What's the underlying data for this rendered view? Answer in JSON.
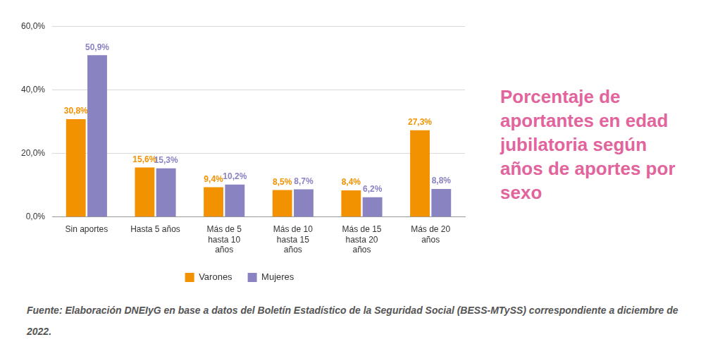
{
  "chart_data": {
    "type": "bar",
    "title": "Porcentaje de aportantes en edad jubilatoria según años de aportes por sexo",
    "source": "Fuente: Elaboración DNEIyG en base a datos del Boletín Estadístico de la Seguridad Social (BESS-MTySS) correspondiente a diciembre de 2022.",
    "categories": [
      "Sin aportes",
      "Hasta 5 años",
      "Más de 5 hasta 10 años",
      "Más de 10 hasta 15 años",
      "Más de 15 hasta 20 años",
      "Más de 20 años"
    ],
    "series": [
      {
        "name": "Varones",
        "color": "#f39200",
        "values": [
          30.8,
          15.6,
          9.4,
          8.5,
          8.4,
          27.3
        ],
        "value_labels": [
          "30,8%",
          "15,6%",
          "9,4%",
          "8,5%",
          "8,4%",
          "27,3%"
        ]
      },
      {
        "name": "Mujeres",
        "color": "#8983c2",
        "values": [
          50.9,
          15.3,
          10.2,
          8.7,
          6.2,
          8.8
        ],
        "value_labels": [
          "50,9%",
          "15,3%",
          "10,2%",
          "8,7%",
          "6,2%",
          "8,8%"
        ]
      }
    ],
    "ylim": [
      0,
      60
    ],
    "yticks": [
      {
        "value": 0,
        "label": "0,0%"
      },
      {
        "value": 20,
        "label": "20,0%"
      },
      {
        "value": 40,
        "label": "40,0%"
      },
      {
        "value": 60,
        "label": "60,0%"
      }
    ],
    "grid": true,
    "legend": "bottom",
    "data_labels": true
  }
}
